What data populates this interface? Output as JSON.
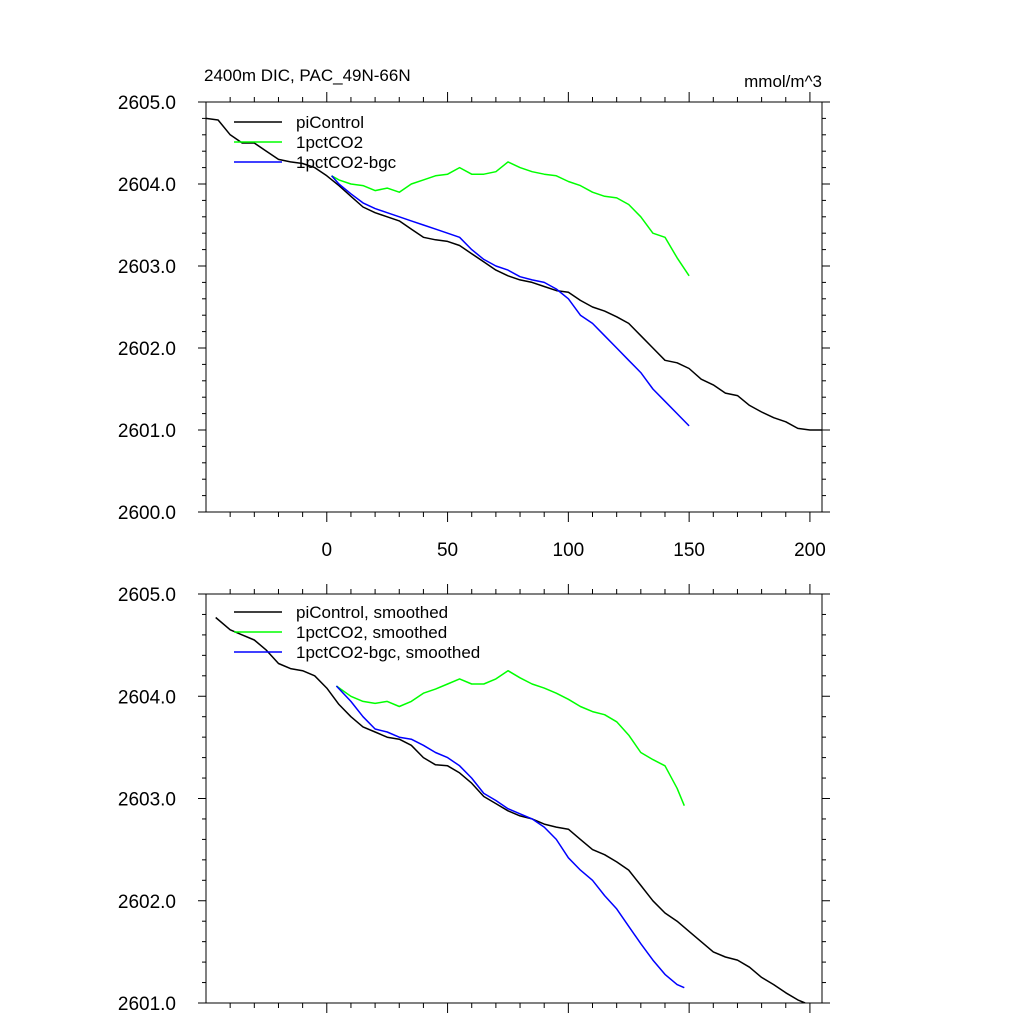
{
  "chart_data": [
    {
      "type": "line",
      "title": "2400m DIC, PAC_49N-66N",
      "units": "mmol/m^3",
      "xlim": [
        -50,
        205
      ],
      "ylim": [
        2600.0,
        2605.0
      ],
      "xticks": [
        0,
        50,
        100,
        150,
        200
      ],
      "xtick_labels": [
        "0",
        "50",
        "100",
        "150",
        "200"
      ],
      "yticks": [
        2600.0,
        2601.0,
        2602.0,
        2603.0,
        2604.0,
        2605.0
      ],
      "ytick_labels": [
        "2600.0",
        "2601.0",
        "2602.0",
        "2603.0",
        "2604.0",
        "2605.0"
      ],
      "legend_position": "top-left",
      "series": [
        {
          "name": "piControl",
          "color": "#000000",
          "x": [
            -50,
            -45,
            -40,
            -35,
            -30,
            -25,
            -20,
            -15,
            -10,
            -5,
            0,
            5,
            10,
            15,
            20,
            25,
            30,
            35,
            40,
            45,
            50,
            55,
            60,
            65,
            70,
            75,
            80,
            85,
            90,
            95,
            100,
            105,
            110,
            115,
            120,
            125,
            130,
            135,
            140,
            145,
            150,
            155,
            160,
            165,
            170,
            175,
            180,
            185,
            190,
            195,
            200,
            205
          ],
          "y": [
            2604.8,
            2604.78,
            2604.6,
            2604.5,
            2604.5,
            2604.4,
            2604.3,
            2604.27,
            2604.25,
            2604.2,
            2604.1,
            2603.98,
            2603.85,
            2603.72,
            2603.65,
            2603.6,
            2603.55,
            2603.45,
            2603.35,
            2603.32,
            2603.3,
            2603.25,
            2603.15,
            2603.05,
            2602.95,
            2602.88,
            2602.83,
            2602.8,
            2602.75,
            2602.7,
            2602.68,
            2602.58,
            2602.5,
            2602.45,
            2602.38,
            2602.3,
            2602.15,
            2602.0,
            2601.85,
            2601.82,
            2601.75,
            2601.62,
            2601.55,
            2601.45,
            2601.42,
            2601.3,
            2601.22,
            2601.15,
            2601.1,
            2601.02,
            2601.0,
            2601.0
          ]
        },
        {
          "name": "1pctCO2",
          "color": "#00ff00",
          "x": [
            2,
            5,
            10,
            15,
            20,
            25,
            30,
            35,
            40,
            45,
            50,
            55,
            60,
            65,
            70,
            75,
            80,
            85,
            90,
            95,
            100,
            105,
            110,
            115,
            120,
            125,
            130,
            135,
            140,
            145,
            150
          ],
          "y": [
            2604.1,
            2604.05,
            2604.0,
            2603.98,
            2603.92,
            2603.95,
            2603.9,
            2604.0,
            2604.05,
            2604.1,
            2604.12,
            2604.2,
            2604.12,
            2604.12,
            2604.15,
            2604.27,
            2604.2,
            2604.15,
            2604.12,
            2604.1,
            2604.03,
            2603.98,
            2603.9,
            2603.85,
            2603.83,
            2603.75,
            2603.6,
            2603.4,
            2603.35,
            2603.1,
            2602.88
          ]
        },
        {
          "name": "1pctCO2-bgc",
          "color": "#0000ff",
          "x": [
            2,
            5,
            10,
            15,
            20,
            25,
            30,
            35,
            40,
            45,
            50,
            55,
            60,
            65,
            70,
            75,
            80,
            85,
            90,
            95,
            100,
            105,
            110,
            115,
            120,
            125,
            130,
            135,
            140,
            145,
            150
          ],
          "y": [
            2604.1,
            2604.0,
            2603.88,
            2603.77,
            2603.7,
            2603.65,
            2603.6,
            2603.55,
            2603.5,
            2603.45,
            2603.4,
            2603.35,
            2603.2,
            2603.08,
            2603.0,
            2602.95,
            2602.87,
            2602.83,
            2602.8,
            2602.72,
            2602.6,
            2602.4,
            2602.3,
            2602.15,
            2602.0,
            2601.85,
            2601.7,
            2601.5,
            2601.35,
            2601.2,
            2601.05
          ]
        }
      ]
    },
    {
      "type": "line",
      "title": "",
      "xlim": [
        -50,
        205
      ],
      "ylim": [
        2601.0,
        2605.0
      ],
      "xticks": [
        0,
        50,
        100,
        150,
        200
      ],
      "yticks": [
        2601.0,
        2602.0,
        2603.0,
        2604.0,
        2605.0
      ],
      "ytick_labels": [
        "2601.0",
        "2602.0",
        "2603.0",
        "2604.0",
        "2605.0"
      ],
      "legend_position": "top-left",
      "series": [
        {
          "name": "piControl, smoothed",
          "color": "#000000",
          "x": [
            -46,
            -40,
            -35,
            -30,
            -25,
            -20,
            -15,
            -10,
            -5,
            0,
            5,
            10,
            15,
            20,
            25,
            30,
            35,
            40,
            45,
            50,
            55,
            60,
            65,
            70,
            75,
            80,
            85,
            90,
            95,
            100,
            105,
            110,
            115,
            120,
            125,
            130,
            135,
            140,
            145,
            150,
            155,
            160,
            165,
            170,
            175,
            180,
            185,
            190,
            195,
            198
          ],
          "y": [
            2604.77,
            2604.65,
            2604.6,
            2604.55,
            2604.45,
            2604.32,
            2604.27,
            2604.25,
            2604.2,
            2604.08,
            2603.92,
            2603.8,
            2603.7,
            2603.65,
            2603.6,
            2603.58,
            2603.52,
            2603.4,
            2603.33,
            2603.32,
            2603.25,
            2603.15,
            2603.02,
            2602.95,
            2602.88,
            2602.83,
            2602.8,
            2602.75,
            2602.72,
            2602.7,
            2602.6,
            2602.5,
            2602.45,
            2602.38,
            2602.3,
            2602.15,
            2602.0,
            2601.88,
            2601.8,
            2601.7,
            2601.6,
            2601.5,
            2601.45,
            2601.42,
            2601.35,
            2601.25,
            2601.18,
            2601.1,
            2601.03,
            2601.0
          ]
        },
        {
          "name": "1pctCO2, smoothed",
          "color": "#00ff00",
          "x": [
            4,
            10,
            15,
            20,
            25,
            30,
            35,
            40,
            45,
            50,
            55,
            60,
            65,
            70,
            75,
            80,
            85,
            90,
            95,
            100,
            105,
            110,
            115,
            120,
            125,
            130,
            135,
            140,
            145,
            148
          ],
          "y": [
            2604.1,
            2604.0,
            2603.95,
            2603.93,
            2603.95,
            2603.9,
            2603.95,
            2604.03,
            2604.07,
            2604.12,
            2604.17,
            2604.12,
            2604.12,
            2604.17,
            2604.25,
            2604.18,
            2604.12,
            2604.08,
            2604.03,
            2603.97,
            2603.9,
            2603.85,
            2603.82,
            2603.75,
            2603.62,
            2603.45,
            2603.38,
            2603.32,
            2603.1,
            2602.93
          ]
        },
        {
          "name": "1pctCO2-bgc, smoothed",
          "color": "#0000ff",
          "x": [
            4,
            10,
            15,
            20,
            25,
            30,
            35,
            40,
            45,
            50,
            55,
            60,
            65,
            70,
            75,
            80,
            85,
            90,
            95,
            100,
            105,
            110,
            115,
            120,
            125,
            130,
            135,
            140,
            145,
            148
          ],
          "y": [
            2604.1,
            2603.95,
            2603.8,
            2603.68,
            2603.65,
            2603.6,
            2603.58,
            2603.52,
            2603.45,
            2603.4,
            2603.32,
            2603.2,
            2603.05,
            2602.98,
            2602.9,
            2602.85,
            2602.8,
            2602.72,
            2602.6,
            2602.42,
            2602.3,
            2602.2,
            2602.05,
            2601.92,
            2601.75,
            2601.58,
            2601.42,
            2601.28,
            2601.18,
            2601.15
          ]
        }
      ]
    }
  ]
}
